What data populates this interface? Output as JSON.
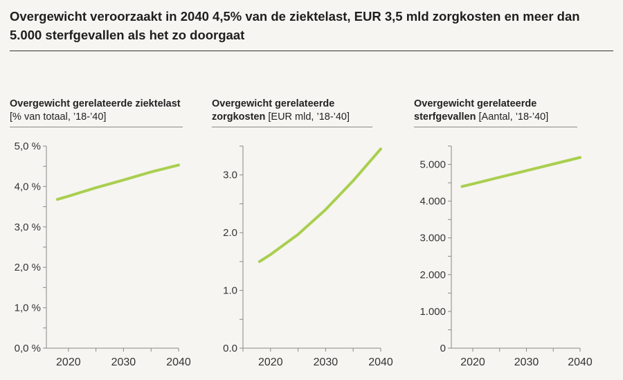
{
  "title": "Overgewicht veroorzaakt in 2040 4,5% van de ziektelast, EUR 3,5 mld zorgkosten en meer dan 5.000 sterfgevallen als het zo doorgaat",
  "line_color": "#a9cf4f",
  "chart_data": [
    {
      "type": "line",
      "title_bold": "Overgewicht gerelateerde ziektelast",
      "title_unit": "[% van totaal, ’18-’40]",
      "x": [
        2018,
        2020,
        2025,
        2030,
        2035,
        2040
      ],
      "y": [
        3.68,
        3.76,
        3.97,
        4.16,
        4.36,
        4.53
      ],
      "xlim": [
        2016,
        2040
      ],
      "ylim": [
        0,
        5
      ],
      "xticks": [
        "2020",
        "2030",
        "2040"
      ],
      "yticks": [
        "0,0 %",
        "1,0 %",
        "2,0 %",
        "3,0 %",
        "4,0 %",
        "5,0 %"
      ],
      "grid": false
    },
    {
      "type": "line",
      "title_bold": "Overgewicht gerelateerde zorgkosten",
      "title_unit": "[EUR mld, ’18-’40]",
      "x": [
        2018,
        2020,
        2025,
        2030,
        2035,
        2040
      ],
      "y": [
        1.5,
        1.62,
        1.97,
        2.4,
        2.9,
        3.45
      ],
      "xlim": [
        2015,
        2040
      ],
      "ylim": [
        0,
        3.5
      ],
      "xticks": [
        "2020",
        "2030",
        "2040"
      ],
      "yticks": [
        "0.0",
        "1.0",
        "2.0",
        "3.0"
      ],
      "grid": false
    },
    {
      "type": "line",
      "title_bold": "Overgewicht gerelateerde sterfgevallen",
      "title_unit": "[Aantal, ’18-’40]",
      "x": [
        2018,
        2020,
        2025,
        2030,
        2035,
        2040
      ],
      "y": [
        4400,
        4470,
        4650,
        4830,
        5010,
        5190
      ],
      "xlim": [
        2016,
        2040
      ],
      "ylim": [
        0,
        5500
      ],
      "xticks": [
        "2020",
        "2030",
        "2040"
      ],
      "yticks": [
        "0",
        "1.000",
        "2.000",
        "3.000",
        "4.000",
        "5.000"
      ],
      "grid": false
    }
  ]
}
